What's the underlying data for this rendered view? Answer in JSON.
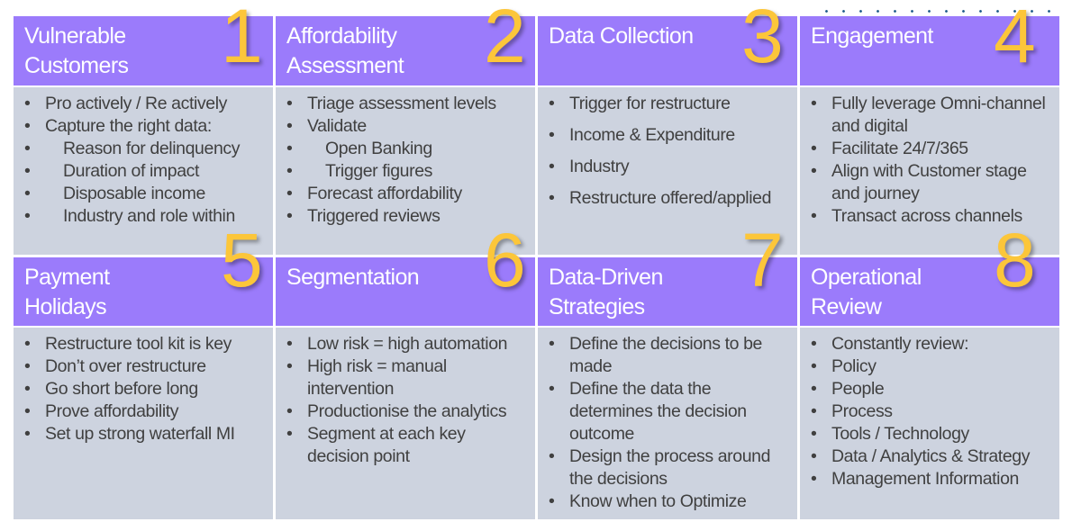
{
  "accent_colors": {
    "header": "#9b7bfb",
    "body": "#cdd3df",
    "number": "#fcc63a",
    "text": "#404040"
  },
  "cells": [
    {
      "number": "1",
      "title": "Vulnerable Customers",
      "items": [
        {
          "text": "Pro actively / Re actively",
          "indent": 0
        },
        {
          "text": "Capture the right data:",
          "indent": 0
        },
        {
          "text": "Reason for delinquency",
          "indent": 1
        },
        {
          "text": "Duration of impact",
          "indent": 1
        },
        {
          "text": "Disposable income",
          "indent": 1
        },
        {
          "text": "Industry and role within",
          "indent": 1
        }
      ]
    },
    {
      "number": "2",
      "title": "Affordability Assessment",
      "items": [
        {
          "text": "Triage assessment levels",
          "indent": 0
        },
        {
          "text": "Validate",
          "indent": 0
        },
        {
          "text": "Open Banking",
          "indent": 1
        },
        {
          "text": "Trigger figures",
          "indent": 1
        },
        {
          "text": "Forecast affordability",
          "indent": 0
        },
        {
          "text": "Triggered reviews",
          "indent": 0
        }
      ]
    },
    {
      "number": "3",
      "title": "Data Collection",
      "spaced": true,
      "items": [
        {
          "text": "Trigger for restructure",
          "indent": 0
        },
        {
          "text": "Income & Expenditure",
          "indent": 0
        },
        {
          "text": "Industry",
          "indent": 0
        },
        {
          "text": "Restructure offered/applied",
          "indent": 0
        }
      ]
    },
    {
      "number": "4",
      "title": "Engagement",
      "items": [
        {
          "text": "Fully leverage Omni-channel and digital",
          "indent": 0
        },
        {
          "text": "Facilitate 24/7/365",
          "indent": 0
        },
        {
          "text": "Align with Customer stage and journey",
          "indent": 0
        },
        {
          "text": "Transact across channels",
          "indent": 0
        }
      ]
    },
    {
      "number": "5",
      "title": "Payment Holidays",
      "items": [
        {
          "text": "Restructure tool kit is key",
          "indent": 0
        },
        {
          "text": "Don’t over restructure",
          "indent": 0
        },
        {
          "text": "Go short before long",
          "indent": 0
        },
        {
          "text": "Prove affordability",
          "indent": 0
        },
        {
          "text": "Set up strong waterfall MI",
          "indent": 0
        }
      ]
    },
    {
      "number": "6",
      "title": "Segmentation",
      "items": [
        {
          "text": "Low risk = high automation",
          "indent": 0
        },
        {
          "text": "High risk = manual intervention",
          "indent": 0
        },
        {
          "text": "Productionise the analytics",
          "indent": 0
        },
        {
          "text": "Segment at each key decision point",
          "indent": 0
        }
      ]
    },
    {
      "number": "7",
      "title": "Data-Driven Strategies",
      "items": [
        {
          "text": "Define the decisions to be made",
          "indent": 0
        },
        {
          "text": "Define the data the determines the decision outcome",
          "indent": 0
        },
        {
          "text": "Design the process around the decisions",
          "indent": 0
        },
        {
          "text": "Know when to Optimize",
          "indent": 0
        }
      ]
    },
    {
      "number": "8",
      "title": "Operational Review",
      "items": [
        {
          "text": "Constantly review:",
          "indent": 0
        },
        {
          "text": "Policy",
          "indent": 0
        },
        {
          "text": "People",
          "indent": 0
        },
        {
          "text": "Process",
          "indent": 0
        },
        {
          "text": "Tools / Technology",
          "indent": 0
        },
        {
          "text": "Data / Analytics & Strategy",
          "indent": 0
        },
        {
          "text": "Management Information",
          "indent": 0
        }
      ]
    }
  ]
}
